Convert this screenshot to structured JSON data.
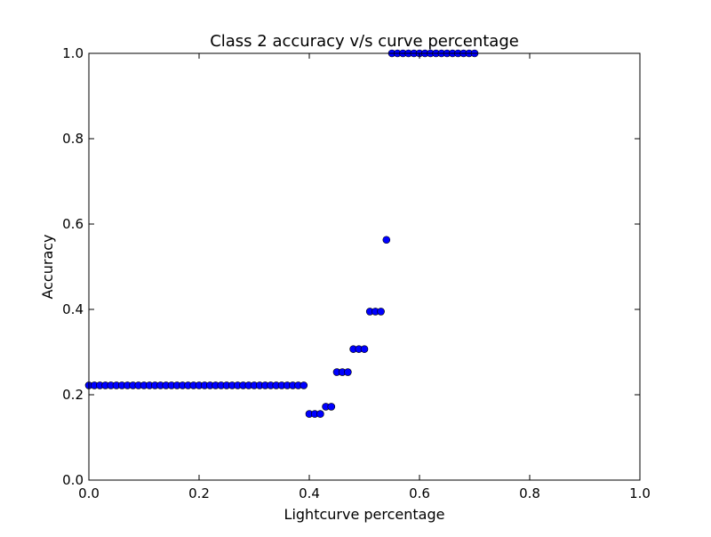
{
  "chart_data": {
    "type": "scatter",
    "title": "Class 2 accuracy v/s curve percentage",
    "xlabel": "Lightcurve percentage",
    "ylabel": "Accuracy",
    "xlim": [
      0.0,
      1.0
    ],
    "ylim": [
      0.0,
      1.0
    ],
    "xticks": [
      "0.0",
      "0.2",
      "0.4",
      "0.6",
      "0.8",
      "1.0"
    ],
    "yticks": [
      "0.0",
      "0.2",
      "0.4",
      "0.6",
      "0.8",
      "1.0"
    ],
    "grid": false,
    "legend": "none",
    "marker_color": "#0000ff",
    "marker_edge_color": "#000000",
    "series": [
      {
        "x": [
          0.0,
          0.01,
          0.02,
          0.03,
          0.04,
          0.05,
          0.06,
          0.07,
          0.08,
          0.09,
          0.1,
          0.11,
          0.12,
          0.13,
          0.14,
          0.15,
          0.16,
          0.17,
          0.18,
          0.19,
          0.2,
          0.21,
          0.22,
          0.23,
          0.24,
          0.25,
          0.26,
          0.27,
          0.28,
          0.29,
          0.3,
          0.31,
          0.32,
          0.33,
          0.34,
          0.35,
          0.36,
          0.37,
          0.38,
          0.39,
          0.4,
          0.41,
          0.42,
          0.43,
          0.44,
          0.45,
          0.46,
          0.47,
          0.48,
          0.49,
          0.5,
          0.51,
          0.52,
          0.53,
          0.54,
          0.55,
          0.56,
          0.57,
          0.58,
          0.59,
          0.6,
          0.61,
          0.62,
          0.63,
          0.64,
          0.65,
          0.66,
          0.67,
          0.68,
          0.69,
          0.7
        ],
        "y": [
          0.222,
          0.222,
          0.222,
          0.222,
          0.222,
          0.222,
          0.222,
          0.222,
          0.222,
          0.222,
          0.222,
          0.222,
          0.222,
          0.222,
          0.222,
          0.222,
          0.222,
          0.222,
          0.222,
          0.222,
          0.222,
          0.222,
          0.222,
          0.222,
          0.222,
          0.222,
          0.222,
          0.222,
          0.222,
          0.222,
          0.222,
          0.222,
          0.222,
          0.222,
          0.222,
          0.222,
          0.222,
          0.222,
          0.222,
          0.222,
          0.155,
          0.155,
          0.155,
          0.172,
          0.172,
          0.253,
          0.253,
          0.253,
          0.307,
          0.307,
          0.307,
          0.395,
          0.395,
          0.395,
          0.563,
          1.0,
          1.0,
          1.0,
          1.0,
          1.0,
          1.0,
          1.0,
          1.0,
          1.0,
          1.0,
          1.0,
          1.0,
          1.0,
          1.0,
          1.0,
          1.0
        ]
      }
    ]
  }
}
